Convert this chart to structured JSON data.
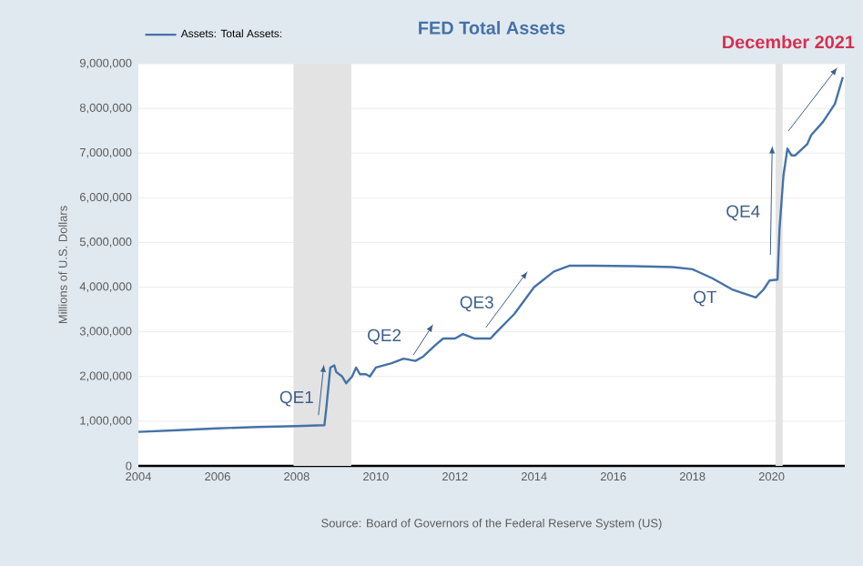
{
  "chart_data": {
    "type": "line",
    "title": "FED Total Assets",
    "ylabel": "Millions of U.S. Dollars",
    "annotations": [
      "QE1",
      "QE2",
      "QE3",
      "QT",
      "QE4",
      "December 2021",
      "Source: Board of Governors of the Federal Reserve System (US)"
    ],
    "x": [
      2004.0,
      2005.0,
      2006.0,
      2007.0,
      2008.0,
      2008.7,
      2008.75,
      2008.85,
      2008.95,
      2009.0,
      2009.15,
      2009.25,
      2009.4,
      2009.5,
      2009.6,
      2009.75,
      2009.85,
      2010.0,
      2010.4,
      2010.7,
      2011.0,
      2011.2,
      2011.5,
      2011.7,
      2012.0,
      2012.2,
      2012.5,
      2012.9,
      2013.0,
      2013.5,
      2014.0,
      2014.5,
      2014.9,
      2015.5,
      2016.5,
      2017.5,
      2018.0,
      2018.5,
      2019.0,
      2019.6,
      2019.8,
      2019.95,
      2020.15,
      2020.2,
      2020.3,
      2020.4,
      2020.5,
      2020.6,
      2020.9,
      2021.0,
      2021.3,
      2021.6,
      2021.8
    ],
    "series": [
      {
        "name": "Assets: Total Assets:",
        "color": "#4572a7",
        "values": [
          760000,
          800000,
          840000,
          870000,
          890000,
          910000,
          1300000,
          2200000,
          2250000,
          2100000,
          2000000,
          1850000,
          2000000,
          2200000,
          2050000,
          2050000,
          2000000,
          2200000,
          2300000,
          2400000,
          2350000,
          2450000,
          2700000,
          2850000,
          2850000,
          2950000,
          2850000,
          2850000,
          2950000,
          3400000,
          4000000,
          4350000,
          4480000,
          4480000,
          4470000,
          4450000,
          4400000,
          4200000,
          3950000,
          3770000,
          3950000,
          4150000,
          4170000,
          5300000,
          6500000,
          7100000,
          6950000,
          6950000,
          7200000,
          7400000,
          7700000,
          8100000,
          8700000
        ]
      }
    ],
    "xlim": [
      2004,
      2021.85
    ],
    "xticks": [
      2004,
      2006,
      2008,
      2010,
      2012,
      2014,
      2016,
      2018,
      2020
    ],
    "ylim": [
      0,
      9000000
    ],
    "yticks": [
      0,
      {
        "value": 1000000,
        "label": "1,000,000"
      },
      {
        "value": 2000000,
        "label": "2,000,000"
      },
      {
        "value": 3000000,
        "label": "3,000,000"
      },
      {
        "value": 4000000,
        "label": "4,000,000"
      },
      {
        "value": 5000000,
        "label": "5,000,000"
      },
      {
        "value": 6000000,
        "label": "6,000,000"
      },
      {
        "value": 7000000,
        "label": "7,000,000"
      },
      {
        "value": 8000000,
        "label": "8,000,000"
      },
      {
        "value": 9000000,
        "label": "9,000,000"
      }
    ],
    "bands": [
      {
        "axis": "x",
        "from": 2007.92,
        "to": 2009.38,
        "color": "#e3e3e3"
      },
      {
        "axis": "x",
        "from": 2020.1,
        "to": 2020.28,
        "color": "#e3e3e3"
      }
    ],
    "grid": "y",
    "legend": "top left",
    "marker": "none",
    "line_style": "solid"
  }
}
